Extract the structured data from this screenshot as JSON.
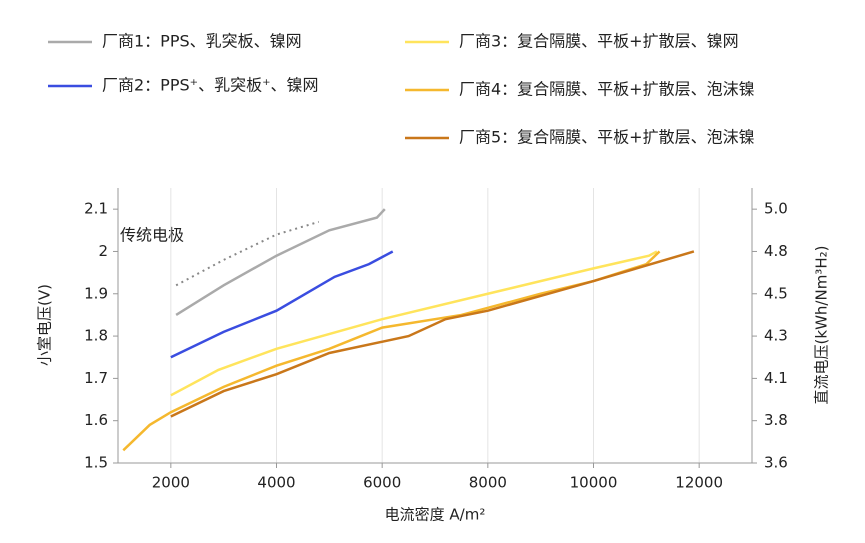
{
  "chart_data": {
    "type": "line",
    "xlabel": "电流密度 A/m²",
    "ylabel": "小室电压(V)",
    "y2label": "直流电压(kWh/Nm³H₂)",
    "xlim": [
      1000,
      13000
    ],
    "xticks": [
      2000,
      4000,
      6000,
      8000,
      10000,
      12000
    ],
    "ylim": [
      1.5,
      2.15
    ],
    "yticks": [
      1.5,
      1.6,
      1.7,
      1.8,
      1.9,
      2.0,
      2.1
    ],
    "y2lim": [
      3.585,
      5.1385
    ],
    "y2ticks": [
      {
        "value": 3.585,
        "label": "3.6"
      },
      {
        "value": 3.824,
        "label": "3.8"
      },
      {
        "value": 4.063,
        "label": "4.1"
      },
      {
        "value": 4.302,
        "label": "4.3"
      },
      {
        "value": 4.541,
        "label": "4.5"
      },
      {
        "value": 4.78,
        "label": "4.8"
      },
      {
        "value": 5.019,
        "label": "5.0"
      }
    ],
    "grid": true,
    "series": [
      {
        "name": "厂商1：PPS、乳突板、镍网",
        "color": "#aaaaaa",
        "x": [
          2100,
          3000,
          4000,
          5000,
          5900,
          6050
        ],
        "values": [
          1.85,
          1.92,
          1.99,
          2.05,
          2.08,
          2.1
        ]
      },
      {
        "name": "厂商2：PPS⁺、乳突板⁺、镍网",
        "color": "#3a4de0",
        "x": [
          2000,
          3000,
          4000,
          5100,
          5750,
          6200
        ],
        "values": [
          1.75,
          1.81,
          1.86,
          1.94,
          1.97,
          2.0
        ]
      },
      {
        "name": "厂商3：复合隔膜、平板+扩散层、镍网",
        "color": "#ffe45c",
        "x": [
          2000,
          2900,
          4000,
          6000,
          8000,
          10000,
          11050,
          11200
        ],
        "values": [
          1.66,
          1.72,
          1.77,
          1.84,
          1.9,
          1.96,
          1.99,
          2.0
        ]
      },
      {
        "name": "厂商4：复合隔膜、平板+扩散层、泡沫镍",
        "color": "#f5b82e",
        "x": [
          1100,
          1600,
          2000,
          3000,
          4000,
          5000,
          6000,
          7500,
          9000,
          10000,
          11000,
          11250
        ],
        "values": [
          1.53,
          1.59,
          1.62,
          1.68,
          1.73,
          1.77,
          1.82,
          1.85,
          1.9,
          1.93,
          1.97,
          2.0
        ]
      },
      {
        "name": "厂商5：复合隔膜、平板+扩散层、泡沫镍",
        "color": "#c9771a",
        "x": [
          2000,
          3000,
          4000,
          5000,
          6500,
          7200,
          8000,
          10000,
          11900
        ],
        "values": [
          1.61,
          1.67,
          1.71,
          1.76,
          1.8,
          1.84,
          1.86,
          1.93,
          2.0
        ]
      }
    ],
    "reference": {
      "label": "传统电极",
      "color": "#888888",
      "x": [
        2100,
        3000,
        4000,
        4800
      ],
      "values": [
        1.92,
        1.98,
        2.04,
        2.07
      ]
    }
  }
}
